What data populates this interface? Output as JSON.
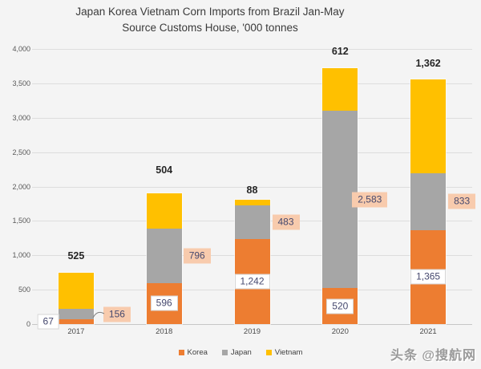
{
  "title": {
    "line1": "Japan Korea Vietnam Corn Imports from Brazil Jan-May",
    "line2": "Source Customs House, '000 tonnes"
  },
  "watermark": "头条 @搜航网",
  "colors": {
    "korea": "#ED7D31",
    "japan": "#A6A6A6",
    "vietnam": "#FFC000",
    "value_box_bg": "#FFFFFF",
    "value_box_border": "#D6D6D6",
    "callout_bg": "#F8CBAD",
    "label_text": "#45486E",
    "total_text": "#262626",
    "axis_text": "#595959",
    "gridline": "#DDDDDD",
    "axis_line": "#C6C6C6",
    "background": "#F4F4F4"
  },
  "chart_data": {
    "type": "bar",
    "stacked": true,
    "title": "Japan Korea Vietnam Corn Imports from Brazil Jan-May",
    "subtitle": "Source Customs House, '000 tonnes",
    "units": "'000 tonnes",
    "categories": [
      "2017",
      "2018",
      "2019",
      "2020",
      "2021"
    ],
    "series": [
      {
        "name": "Korea",
        "color": "#ED7D31",
        "values": [
          67,
          596,
          1242,
          520,
          1365
        ],
        "labels": [
          "67",
          "596",
          "1,242",
          "520",
          "1,365"
        ],
        "label_style": "white-box"
      },
      {
        "name": "Japan",
        "color": "#A6A6A6",
        "values": [
          156,
          796,
          483,
          2583,
          833
        ],
        "labels": [
          "156",
          "796",
          "483",
          "2,583",
          "833"
        ],
        "label_style": "callout-box"
      },
      {
        "name": "Vietnam",
        "color": "#FFC000",
        "values": [
          525,
          504,
          88,
          612,
          1362
        ],
        "labels": [
          "525",
          "504",
          "88",
          "612",
          "1,362"
        ],
        "label_style": "bold-above-bar"
      }
    ],
    "ylim": [
      0,
      4000
    ],
    "ytick_step": 500,
    "yticks": [
      "0",
      "500",
      "1,000",
      "1,500",
      "2,000",
      "2,500",
      "3,000",
      "3,500",
      "4,000"
    ],
    "grid": true,
    "legend_position": "bottom",
    "legend": [
      "Korea",
      "Japan",
      "Vietnam"
    ]
  }
}
